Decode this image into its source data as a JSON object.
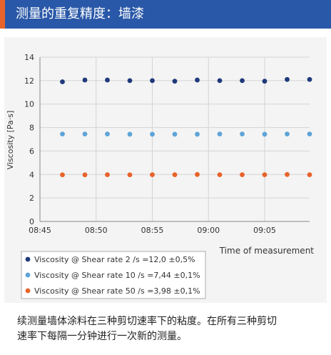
{
  "header": {
    "title": "测量的重复精度：墙漆",
    "bg_color": "#2a58a8",
    "accent_color": "#e8632a"
  },
  "caption": {
    "line1": "续测量墙体涂料在三种剪切速率下的粘度。在所有三种剪切",
    "line2": "速率下每隔一分钟进行一次新的测量。"
  },
  "chart_data": {
    "type": "scatter",
    "title": "",
    "xlabel": "Time of measurement",
    "ylabel": "Viscosity [Pa·s]",
    "ylim": [
      0,
      14
    ],
    "yticks": [
      0,
      2,
      4,
      6,
      8,
      10,
      12,
      14
    ],
    "xlim": [
      "08:45",
      "09:09"
    ],
    "xticks": [
      "08:45",
      "08:50",
      "08:55",
      "09:00",
      "09:05"
    ],
    "grid": true,
    "legend_position": "bottom-left",
    "x": [
      "08:47",
      "08:49",
      "08:51",
      "08:53",
      "08:55",
      "08:57",
      "08:59",
      "09:01",
      "09:03",
      "09:05",
      "09:07",
      "09:09"
    ],
    "series": [
      {
        "name": "Viscosity @ Shear rate 2 /s =12,0 ±0,5%",
        "color": "#1f3a7a",
        "values": [
          11.9,
          12.05,
          12.05,
          12.0,
          12.0,
          11.95,
          12.05,
          12.0,
          12.0,
          11.95,
          12.1,
          12.1
        ]
      },
      {
        "name": "Viscosity @ Shear rate 10 /s =7,44 ±0,1%",
        "color": "#5ea4d8",
        "values": [
          7.45,
          7.45,
          7.45,
          7.43,
          7.43,
          7.43,
          7.43,
          7.45,
          7.45,
          7.43,
          7.45,
          7.45
        ]
      },
      {
        "name": "Viscosity @ Shear rate 50 /s =3,98 ±0,1%",
        "color": "#e8632a",
        "values": [
          3.97,
          3.97,
          3.98,
          3.97,
          3.98,
          3.98,
          4.0,
          3.98,
          3.98,
          3.98,
          4.0,
          3.98
        ]
      }
    ]
  }
}
